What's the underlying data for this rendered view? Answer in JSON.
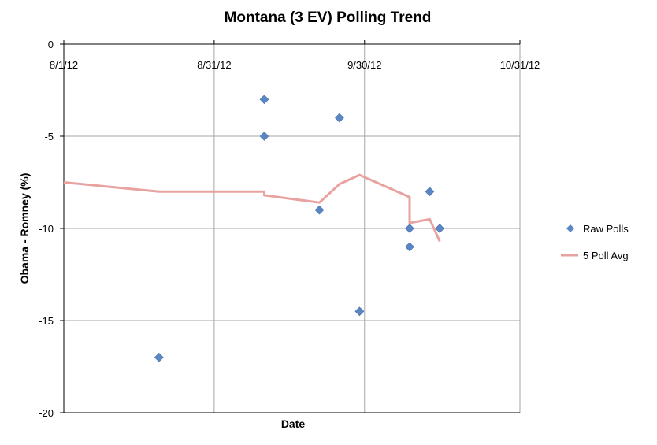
{
  "chart_data": {
    "type": "scatter",
    "title": "Montana (3 EV) Polling Trend",
    "xlabel": "Date",
    "ylabel": "Obama - Romney (%)",
    "x_axis": {
      "min": "2012-08-01",
      "max": "2012-10-31",
      "ticks": [
        "8/1/12",
        "8/31/12",
        "9/30/12",
        "10/31/12"
      ],
      "tick_dates": [
        "2012-08-01",
        "2012-08-31",
        "2012-09-30",
        "2012-10-31"
      ]
    },
    "y_axis": {
      "ylim": [
        -20,
        0
      ],
      "ticks": [
        "0",
        "-5",
        "-10",
        "-15",
        "-20"
      ],
      "tick_values": [
        0,
        -5,
        -10,
        -15,
        -20
      ]
    },
    "grid": true,
    "legend_position": "right",
    "series": [
      {
        "name": "Raw Polls",
        "kind": "scatter",
        "marker": "diamond",
        "color": "#5b86c4",
        "points": [
          {
            "x": "2012-08-20",
            "y": -17
          },
          {
            "x": "2012-09-10",
            "y": -3
          },
          {
            "x": "2012-09-10",
            "y": -5
          },
          {
            "x": "2012-09-21",
            "y": -9
          },
          {
            "x": "2012-09-25",
            "y": -4
          },
          {
            "x": "2012-09-29",
            "y": -14.5
          },
          {
            "x": "2012-10-09",
            "y": -10
          },
          {
            "x": "2012-10-09",
            "y": -11
          },
          {
            "x": "2012-10-13",
            "y": -8
          },
          {
            "x": "2012-10-15",
            "y": -10
          }
        ]
      },
      {
        "name": "5 Poll Avg",
        "kind": "line",
        "color": "#e8a3a1",
        "points": [
          {
            "x": "2012-08-01",
            "y": -7.5
          },
          {
            "x": "2012-08-20",
            "y": -8
          },
          {
            "x": "2012-09-10",
            "y": -8
          },
          {
            "x": "2012-09-10",
            "y": -8.2
          },
          {
            "x": "2012-09-21",
            "y": -8.6
          },
          {
            "x": "2012-09-25",
            "y": -7.6
          },
          {
            "x": "2012-09-29",
            "y": -7.1
          },
          {
            "x": "2012-10-09",
            "y": -8.3
          },
          {
            "x": "2012-10-09",
            "y": -9.7
          },
          {
            "x": "2012-10-13",
            "y": -9.5
          },
          {
            "x": "2012-10-15",
            "y": -10.7
          }
        ]
      }
    ]
  }
}
